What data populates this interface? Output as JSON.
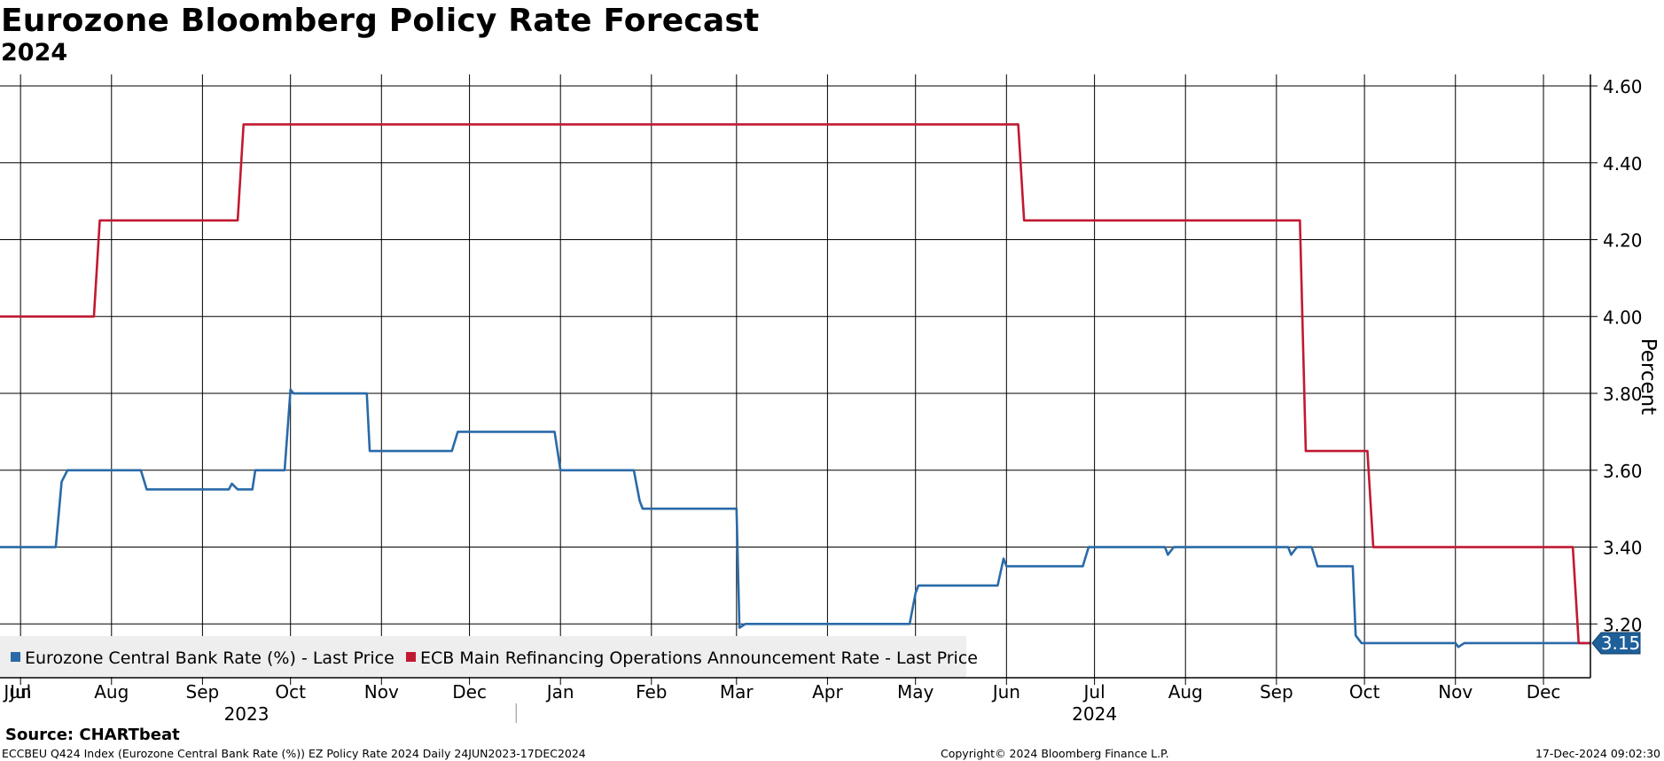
{
  "title": "Eurozone Bloomberg Policy Rate Forecast",
  "subtitle": "2024",
  "footer": {
    "source": "Source: CHARTbeat",
    "description": "ECCBEU Q424 Index (Eurozone Central Bank Rate (%)) EZ Policy Rate 2024  Daily 24JUN2023-17DEC2024",
    "copyright": "Copyright© 2024 Bloomberg Finance L.P.",
    "timestamp": "17-Dec-2024 09:02:30"
  },
  "chart_data": {
    "type": "line",
    "title": "Eurozone Bloomberg Policy Rate Forecast",
    "subtitle": "2024",
    "ylabel": "Percent",
    "y_axis_side": "right",
    "ylim": [
      3.06,
      4.63
    ],
    "y_ticks": [
      3.2,
      3.4,
      3.6,
      3.8,
      4.0,
      4.2,
      4.4,
      4.6
    ],
    "y_tick_labels": [
      "3.20",
      "3.40",
      "3.60",
      "3.80",
      "4.00",
      "4.20",
      "4.40",
      "4.60"
    ],
    "xlim": [
      "2023-06-24",
      "2024-12-17"
    ],
    "x_ticks": [
      "2023-07-01",
      "2023-08-01",
      "2023-09-01",
      "2023-10-01",
      "2023-11-01",
      "2023-12-01",
      "2024-01-01",
      "2024-02-01",
      "2024-03-01",
      "2024-04-01",
      "2024-05-01",
      "2024-06-01",
      "2024-07-01",
      "2024-08-01",
      "2024-09-01",
      "2024-10-01",
      "2024-11-01",
      "2024-12-01"
    ],
    "x_tick_labels": [
      "Jul",
      "Aug",
      "Sep",
      "Oct",
      "Nov",
      "Dec",
      "Jan",
      "Feb",
      "Mar",
      "Apr",
      "May",
      "Jun",
      "Jul",
      "Aug",
      "Sep",
      "Oct",
      "Nov",
      "Dec"
    ],
    "x_leading_label": "Jun",
    "year_labels": [
      {
        "label": "2023",
        "date": "2023-09-16"
      },
      {
        "label": "2024",
        "date": "2024-07-01"
      }
    ],
    "grid": true,
    "legend_position": "bottom-left",
    "last_value_label": "3.15",
    "series": [
      {
        "name": "Eurozone Central Bank Rate (%) - Last Price",
        "color": "#2a6aa8",
        "points": [
          [
            "2023-06-24",
            3.4
          ],
          [
            "2023-07-13",
            3.4
          ],
          [
            "2023-07-15",
            3.57
          ],
          [
            "2023-07-17",
            3.6
          ],
          [
            "2023-08-11",
            3.6
          ],
          [
            "2023-08-13",
            3.55
          ],
          [
            "2023-09-10",
            3.55
          ],
          [
            "2023-09-11",
            3.565
          ],
          [
            "2023-09-13",
            3.55
          ],
          [
            "2023-09-18",
            3.55
          ],
          [
            "2023-09-19",
            3.6
          ],
          [
            "2023-09-29",
            3.6
          ],
          [
            "2023-10-01",
            3.81
          ],
          [
            "2023-10-02",
            3.8
          ],
          [
            "2023-10-27",
            3.8
          ],
          [
            "2023-10-28",
            3.65
          ],
          [
            "2023-11-25",
            3.65
          ],
          [
            "2023-11-27",
            3.7
          ],
          [
            "2023-12-30",
            3.7
          ],
          [
            "2024-01-01",
            3.6
          ],
          [
            "2024-01-26",
            3.6
          ],
          [
            "2024-01-28",
            3.52
          ],
          [
            "2024-01-29",
            3.5
          ],
          [
            "2024-03-01",
            3.5
          ],
          [
            "2024-03-02",
            3.19
          ],
          [
            "2024-03-04",
            3.2
          ],
          [
            "2024-04-29",
            3.2
          ],
          [
            "2024-05-01",
            3.28
          ],
          [
            "2024-05-02",
            3.3
          ],
          [
            "2024-05-29",
            3.3
          ],
          [
            "2024-05-31",
            3.37
          ],
          [
            "2024-06-01",
            3.35
          ],
          [
            "2024-06-27",
            3.35
          ],
          [
            "2024-06-29",
            3.4
          ],
          [
            "2024-07-25",
            3.4
          ],
          [
            "2024-07-26",
            3.38
          ],
          [
            "2024-07-28",
            3.4
          ],
          [
            "2024-09-05",
            3.4
          ],
          [
            "2024-09-06",
            3.38
          ],
          [
            "2024-09-08",
            3.4
          ],
          [
            "2024-09-13",
            3.4
          ],
          [
            "2024-09-15",
            3.35
          ],
          [
            "2024-09-27",
            3.35
          ],
          [
            "2024-09-28",
            3.17
          ],
          [
            "2024-09-30",
            3.15
          ],
          [
            "2024-11-01",
            3.15
          ],
          [
            "2024-11-02",
            3.14
          ],
          [
            "2024-11-04",
            3.15
          ],
          [
            "2024-12-17",
            3.15
          ]
        ]
      },
      {
        "name": "ECB Main Refinancing Operations Announcement Rate - Last Price",
        "color": "#c01a32",
        "points": [
          [
            "2023-06-24",
            4.0
          ],
          [
            "2023-07-26",
            4.0
          ],
          [
            "2023-07-28",
            4.25
          ],
          [
            "2023-09-13",
            4.25
          ],
          [
            "2023-09-15",
            4.5
          ],
          [
            "2024-06-05",
            4.5
          ],
          [
            "2024-06-07",
            4.25
          ],
          [
            "2024-09-09",
            4.25
          ],
          [
            "2024-09-11",
            3.65
          ],
          [
            "2024-10-02",
            3.65
          ],
          [
            "2024-10-04",
            3.4
          ],
          [
            "2024-12-11",
            3.4
          ],
          [
            "2024-12-13",
            3.15
          ],
          [
            "2024-12-17",
            3.15
          ]
        ]
      }
    ]
  }
}
